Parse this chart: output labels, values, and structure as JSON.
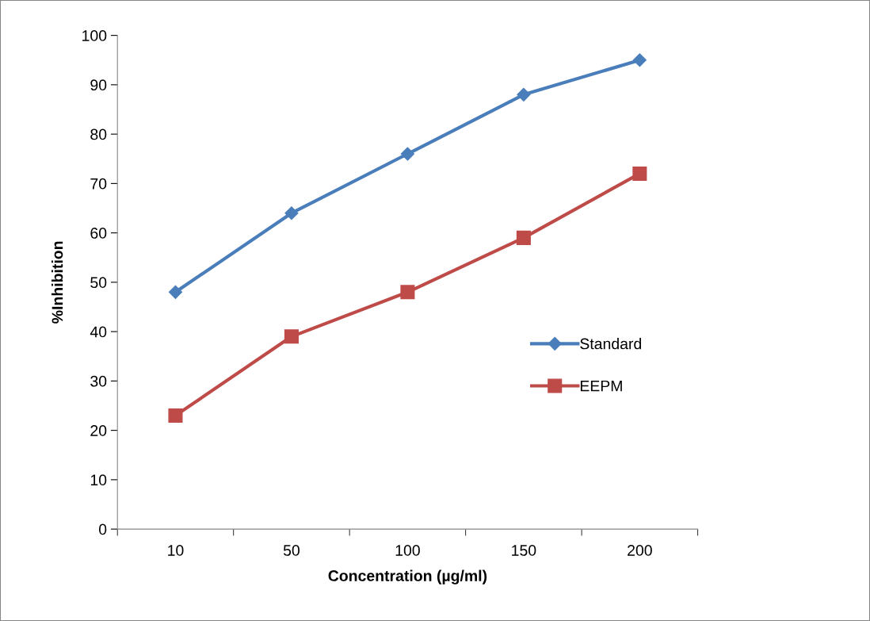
{
  "chart_data": {
    "type": "line",
    "xlabel": "Concentration (µg/ml)",
    "ylabel": "%Inhibition",
    "categories": [
      "10",
      "50",
      "100",
      "150",
      "200"
    ],
    "series": [
      {
        "name": "Standard",
        "color": "#4a7ebb",
        "marker": "diamond",
        "values": [
          48,
          64,
          76,
          88,
          95
        ]
      },
      {
        "name": "EEPM",
        "color": "#be4b48",
        "marker": "square",
        "values": [
          23,
          39,
          48,
          59,
          72
        ]
      }
    ],
    "ylim": [
      0,
      100
    ],
    "yticks": [
      0,
      10,
      20,
      30,
      40,
      50,
      60,
      70,
      80,
      90,
      100
    ],
    "grid": false,
    "legend": "right",
    "line_style": "solid"
  }
}
